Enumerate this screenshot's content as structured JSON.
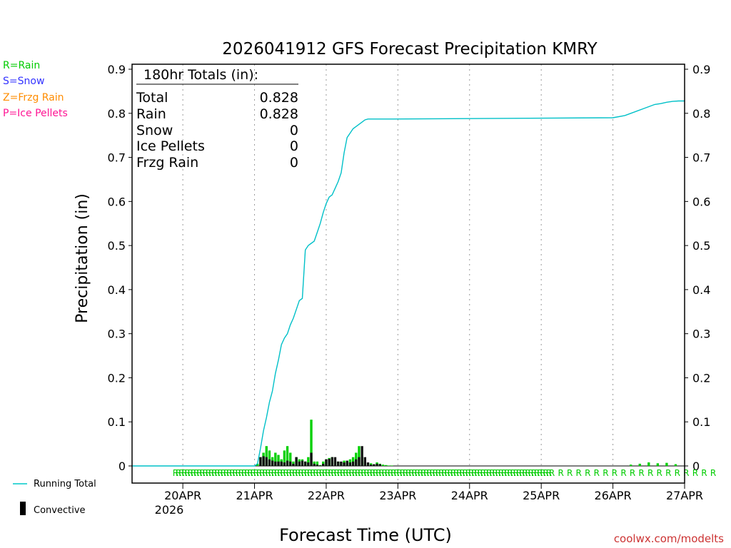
{
  "chart_data": {
    "type": "bar",
    "title": "2026041912 GFS Forecast Precipitation KMRY",
    "xlabel": "Forecast Time (UTC)",
    "ylabel": "Precipitation (in)",
    "ylim": [
      0,
      0.92
    ],
    "yticks": [
      "0",
      "0.1",
      "0.2",
      "0.3",
      "0.4",
      "0.5",
      "0.6",
      "0.7",
      "0.8",
      "0.9"
    ],
    "x_range_hours": [
      -5,
      180
    ],
    "xticks": [
      {
        "label": "20APR",
        "hour": 12
      },
      {
        "label": "21APR",
        "hour": 36
      },
      {
        "label": "22APR",
        "hour": 60
      },
      {
        "label": "23APR",
        "hour": 84
      },
      {
        "label": "24APR",
        "hour": 108
      },
      {
        "label": "25APR",
        "hour": 132
      },
      {
        "label": "26APR",
        "hour": 156
      },
      {
        "label": "27APR",
        "hour": 180
      }
    ],
    "year_label": "2026",
    "legend_types": [
      {
        "text": "R=Rain",
        "color": "#00cc00"
      },
      {
        "text": "S=Snow",
        "color": "#3333ff"
      },
      {
        "text": "Z=Frzg Rain",
        "color": "#ff8c00"
      },
      {
        "text": "P=Ice Pellets",
        "color": "#ff1493"
      }
    ],
    "legend_series": [
      {
        "text": "Running Total",
        "color": "#00c8c8"
      },
      {
        "text": "Convective",
        "color": "#000000"
      }
    ],
    "totals": {
      "header": "180hr Totals (in):",
      "rows": [
        {
          "label": "Total",
          "value": "0.828"
        },
        {
          "label": "Rain",
          "value": "0.828"
        },
        {
          "label": "Snow",
          "value": "0"
        },
        {
          "label": "Ice Pellets",
          "value": "0"
        },
        {
          "label": "Frzg Rain",
          "value": "0"
        }
      ]
    },
    "series": [
      {
        "name": "Running Total",
        "hours": [
          -5,
          36,
          37,
          38,
          39,
          40,
          41,
          42,
          43,
          44,
          45,
          46,
          47,
          48,
          49,
          50,
          51,
          52,
          53,
          54,
          55,
          56,
          57,
          58,
          59,
          60,
          61,
          62,
          63,
          64,
          65,
          66,
          67,
          68,
          69,
          70,
          71,
          72,
          73,
          74,
          75,
          76,
          77,
          78,
          79,
          80,
          81,
          82,
          156,
          160,
          162,
          164,
          166,
          168,
          170,
          172,
          174,
          176,
          178,
          180
        ],
        "values": [
          0,
          0,
          0.005,
          0.04,
          0.08,
          0.11,
          0.145,
          0.17,
          0.21,
          0.24,
          0.275,
          0.29,
          0.3,
          0.32,
          0.335,
          0.355,
          0.375,
          0.38,
          0.49,
          0.5,
          0.505,
          0.51,
          0.53,
          0.55,
          0.575,
          0.595,
          0.61,
          0.615,
          0.63,
          0.645,
          0.665,
          0.71,
          0.745,
          0.755,
          0.765,
          0.77,
          0.775,
          0.78,
          0.785,
          0.787,
          0.787,
          0.787,
          0.787,
          0.787,
          0.787,
          0.787,
          0.787,
          0.787,
          0.79,
          0.795,
          0.8,
          0.805,
          0.81,
          0.815,
          0.82,
          0.822,
          0.825,
          0.827,
          0.828,
          0.828
        ]
      },
      {
        "name": "Rain",
        "hours": [
          37,
          38,
          39,
          40,
          41,
          42,
          43,
          44,
          45,
          46,
          47,
          48,
          49,
          50,
          51,
          52,
          53,
          54,
          55,
          56,
          57,
          58,
          59,
          60,
          61,
          62,
          63,
          64,
          65,
          66,
          67,
          68,
          69,
          70,
          71,
          72,
          73,
          74,
          75,
          76,
          77,
          78,
          79,
          80,
          81,
          82,
          162,
          165,
          168,
          171,
          174,
          177
        ],
        "values": [
          0.005,
          0.02,
          0.03,
          0.045,
          0.035,
          0.02,
          0.03,
          0.025,
          0.015,
          0.035,
          0.045,
          0.03,
          0.01,
          0.02,
          0.015,
          0.015,
          0.01,
          0.02,
          0.105,
          0.01,
          0.01,
          0.002,
          0.01,
          0.015,
          0.018,
          0.02,
          0.01,
          0.01,
          0.008,
          0.012,
          0.01,
          0.015,
          0.02,
          0.03,
          0.045,
          0.02,
          0.01,
          0.005,
          0.006,
          0.003,
          0.008,
          0.005,
          0.003,
          0.002,
          0.001,
          0.001,
          0.003,
          0.005,
          0.008,
          0.006,
          0.007,
          0.004
        ]
      },
      {
        "name": "Convective",
        "hours": [
          38,
          39,
          40,
          41,
          42,
          43,
          44,
          45,
          46,
          47,
          48,
          49,
          50,
          51,
          52,
          53,
          54,
          55,
          56,
          57,
          58,
          59,
          60,
          61,
          62,
          63,
          64,
          65,
          66,
          67,
          68,
          69,
          70,
          71,
          72,
          73,
          74,
          75,
          76,
          77,
          78
        ],
        "values": [
          0.02,
          0.022,
          0.02,
          0.015,
          0.012,
          0.01,
          0.01,
          0.01,
          0.008,
          0.012,
          0.01,
          0.005,
          0.02,
          0.01,
          0.012,
          0.01,
          0.008,
          0.03,
          0.005,
          0.003,
          0.001,
          0.005,
          0.015,
          0.016,
          0.02,
          0.02,
          0.01,
          0.01,
          0.008,
          0.012,
          0.008,
          0.01,
          0.015,
          0.02,
          0.045,
          0.02,
          0.008,
          0.003,
          0.004,
          0.005,
          0.004
        ]
      }
    ],
    "type_strip": {
      "label": "R",
      "color": "#00cc00",
      "start_hour": 0,
      "end_hour": 180,
      "dense_step_hours": 1,
      "sparse_start_hour": 126,
      "sparse_step_hours": 3
    },
    "credit": "coolwx.com/modelts"
  }
}
